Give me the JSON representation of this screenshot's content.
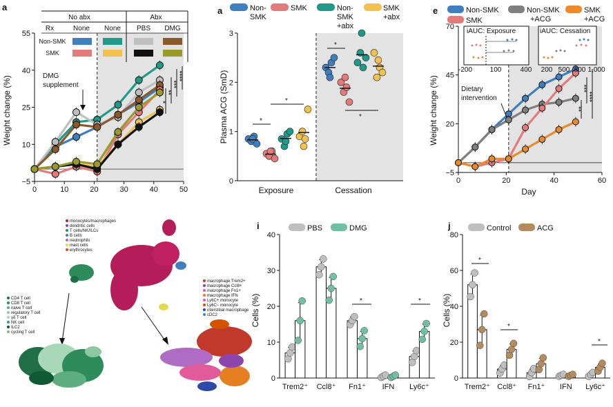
{
  "colors": {
    "non_smk": "#3f7fc0",
    "smk": "#e47a7a",
    "non_smk_abx": "#1f9a8a",
    "smk_abx": "#f2c14e",
    "pbs_grey": "#bfbfbf",
    "dmg_brown": "#8b5a2b",
    "smk_pbs_black": "#111111",
    "smk_dmg_olive": "#9a9a2a",
    "non_smk_acg": "#7f7f7f",
    "smk_acg": "#ec8a2a",
    "acg_tan": "#b38b5d",
    "shade": "#e3e3e3"
  },
  "panelA": {
    "letter": "a",
    "table": {
      "group1": "No abx",
      "group2": "Abx",
      "rx": "Rx",
      "col_none1": "None",
      "col_none2": "None",
      "col_pbs": "PBS",
      "col_dmg": "DMG",
      "row1": "Non-SMK",
      "row2": "SMK"
    },
    "annotation": "DMG supplement",
    "sig": [
      "*",
      "**",
      "***",
      "****"
    ]
  },
  "panelB": {
    "letter": "a",
    "legend": [
      "Non-SMK",
      "SMK",
      "Non-SMK +abx",
      "SMK +abx"
    ],
    "sig": [
      "*",
      "*",
      "*",
      "*"
    ]
  },
  "panelE": {
    "letter": "e",
    "legend": [
      "Non-SMK",
      "Non-SMK +ACG",
      "SMK +ACG",
      "SMK"
    ],
    "inset1_title": "iAUC: Exposure",
    "inset2_title": "iAUC: Cessation",
    "inset1_ticks": [
      "-200",
      "100",
      "400"
    ],
    "inset2_ticks": [
      "200",
      "500",
      "800",
      "1,000"
    ],
    "annotation": "Dietary intervention",
    "sig": [
      "**",
      "***",
      "****",
      "****"
    ]
  },
  "umap": {
    "legend_main": [
      "monocytes/macrophages",
      "dendritic cells",
      "T cells/NK/ILCs",
      "B cells",
      "neutrophils",
      "mast cells",
      "erythrocytes"
    ],
    "legend_t": [
      "CD4 T cell",
      "CD8 T cell",
      "naive T cell",
      "regulatory T cell",
      "γδ T cell",
      "NK cell",
      "ILC2",
      "cycling T cell"
    ],
    "legend_m": [
      "macrophage Trem2+",
      "macrophage Ccl8+",
      "macrophage Fn1+",
      "macrophage IFN",
      "Ly6C+ monocyte",
      "Ly6C− monocyte",
      "interstitial macrophage",
      "cDC2"
    ]
  },
  "panelI": {
    "letter": "i",
    "legend": [
      "PBS",
      "DMG"
    ],
    "sig": [
      "*",
      "*"
    ]
  },
  "panelJ": {
    "letter": "j",
    "legend": [
      "Control",
      "ACG"
    ],
    "sig": [
      "*",
      "*",
      "*"
    ]
  },
  "chart_data": [
    {
      "id": "a",
      "type": "line",
      "xlabel": "",
      "ylabel": "Weight change (%)",
      "xlim": [
        0,
        50
      ],
      "ylim": [
        -5,
        55
      ],
      "x_ticks": [
        0,
        10,
        20,
        30,
        40,
        50
      ],
      "y_ticks": [
        -5,
        10,
        25,
        40,
        55
      ],
      "x": [
        0,
        7,
        14,
        21,
        28,
        35,
        42
      ],
      "shaded_from": 21,
      "series": [
        {
          "key": "ns_none",
          "color": "#3f7fc0",
          "values": [
            0,
            9,
            13,
            17,
            22,
            27,
            33
          ]
        },
        {
          "key": "ns_abx_none",
          "color": "#1f9a8a",
          "values": [
            0,
            10,
            19,
            20,
            26,
            36,
            42
          ]
        },
        {
          "key": "ns_pbs",
          "color": "#bfbfbf",
          "values": [
            0,
            11,
            23,
            18,
            21,
            31,
            36
          ]
        },
        {
          "key": "ns_dmg",
          "color": "#8b5a2b",
          "values": [
            0,
            8,
            18,
            17,
            22,
            28,
            34
          ]
        },
        {
          "key": "smk_none",
          "color": "#e47a7a",
          "values": [
            0,
            -2,
            1,
            -1,
            14,
            23,
            32
          ]
        },
        {
          "key": "smk_abx_none",
          "color": "#f2c14e",
          "values": [
            0,
            1,
            2,
            1,
            10,
            19,
            24
          ]
        },
        {
          "key": "smk_pbs",
          "color": "#111111",
          "values": [
            0,
            1,
            2,
            0,
            10,
            17,
            23
          ]
        },
        {
          "key": "smk_dmg",
          "color": "#9a9a2a",
          "values": [
            0,
            1,
            3,
            2,
            15,
            25,
            31
          ]
        }
      ]
    },
    {
      "id": "b",
      "type": "scatter",
      "ylabel": "Plasma ACG (SmD)",
      "ylim": [
        0,
        3
      ],
      "y_ticks": [
        0,
        1,
        2,
        3
      ],
      "categories": [
        "Exposure",
        "Cessation"
      ],
      "series": [
        {
          "name": "Non-SMK",
          "color": "#3f7fc0",
          "exposure": [
            0.85,
            0.8,
            0.9,
            0.75,
            0.85
          ],
          "cessation": [
            2.3,
            2.2,
            2.4,
            2.5,
            2.1
          ]
        },
        {
          "name": "SMK",
          "color": "#e47a7a",
          "exposure": [
            0.55,
            0.5,
            0.6,
            0.45,
            0.6
          ],
          "cessation": [
            2.0,
            1.8,
            1.9,
            1.6,
            2.1
          ]
        },
        {
          "name": "Non-SMK +abx",
          "color": "#1f9a8a",
          "exposure": [
            0.85,
            0.7,
            0.95,
            1.0,
            0.8
          ],
          "cessation": [
            2.4,
            2.6,
            2.3,
            2.5,
            3.0
          ]
        },
        {
          "name": "SMK +abx",
          "color": "#f2c14e",
          "exposure": [
            0.9,
            1.0,
            0.85,
            1.45,
            0.7
          ],
          "cessation": [
            2.6,
            2.1,
            2.3,
            2.2,
            2.45
          ]
        }
      ]
    },
    {
      "id": "e",
      "type": "line",
      "xlabel": "Day",
      "ylabel": "Weight change (%)",
      "xlim": [
        0,
        60
      ],
      "ylim": [
        -5,
        70
      ],
      "x_ticks": [
        0,
        20,
        40,
        60
      ],
      "y_ticks": [
        -5,
        20,
        45,
        70
      ],
      "x": [
        0,
        7,
        14,
        21,
        28,
        35,
        42,
        49
      ],
      "shaded_from": 21,
      "series": [
        {
          "name": "Non-SMK",
          "color": "#3f7fc0",
          "values": [
            0,
            8,
            17,
            25,
            33,
            40,
            44,
            48
          ]
        },
        {
          "name": "Non-SMK +ACG",
          "color": "#7f7f7f",
          "values": [
            0,
            8,
            17,
            22,
            27,
            30,
            31,
            33
          ]
        },
        {
          "name": "SMK",
          "color": "#e47a7a",
          "values": [
            0,
            -2,
            0,
            2,
            18,
            28,
            38,
            46
          ]
        },
        {
          "name": "SMK +ACG",
          "color": "#ec8a2a",
          "values": [
            0,
            -2,
            2,
            2,
            7,
            12,
            17,
            21
          ]
        }
      ]
    },
    {
      "id": "i",
      "type": "bar",
      "ylabel": "Cells (%)",
      "ylim": [
        0,
        40
      ],
      "y_ticks": [
        0,
        10,
        20,
        30,
        40
      ],
      "categories": [
        "Trem2⁺",
        "Ccl8⁺",
        "Fn1⁺",
        "IFN",
        "Ly6c⁺"
      ],
      "series": [
        {
          "name": "PBS",
          "color": "#bfbfbf",
          "values": [
            7,
            31,
            16,
            0.5,
            6
          ],
          "errors": [
            1.5,
            2,
            1,
            0.3,
            1.5
          ]
        },
        {
          "name": "DMG",
          "color": "#6fc0a3",
          "values": [
            16,
            25,
            11,
            0.5,
            13
          ],
          "errors": [
            5,
            3,
            2,
            0.3,
            2
          ]
        }
      ]
    },
    {
      "id": "j",
      "type": "bar",
      "ylabel": "Cells (%)",
      "ylim": [
        0,
        80
      ],
      "y_ticks": [
        0,
        20,
        40,
        60,
        80
      ],
      "categories": [
        "Trem2⁺",
        "Ccl8⁺",
        "Fn1⁺",
        "IFN",
        "Ly6c⁺"
      ],
      "series": [
        {
          "name": "Control",
          "color": "#bfbfbf",
          "values": [
            52,
            5,
            3,
            1.5,
            2
          ],
          "errors": [
            6,
            2,
            2,
            0.5,
            1
          ]
        },
        {
          "name": "ACG",
          "color": "#b38b5d",
          "values": [
            27,
            16,
            8,
            1.5,
            6
          ],
          "errors": [
            8,
            3,
            3,
            0.5,
            2
          ]
        }
      ]
    }
  ]
}
